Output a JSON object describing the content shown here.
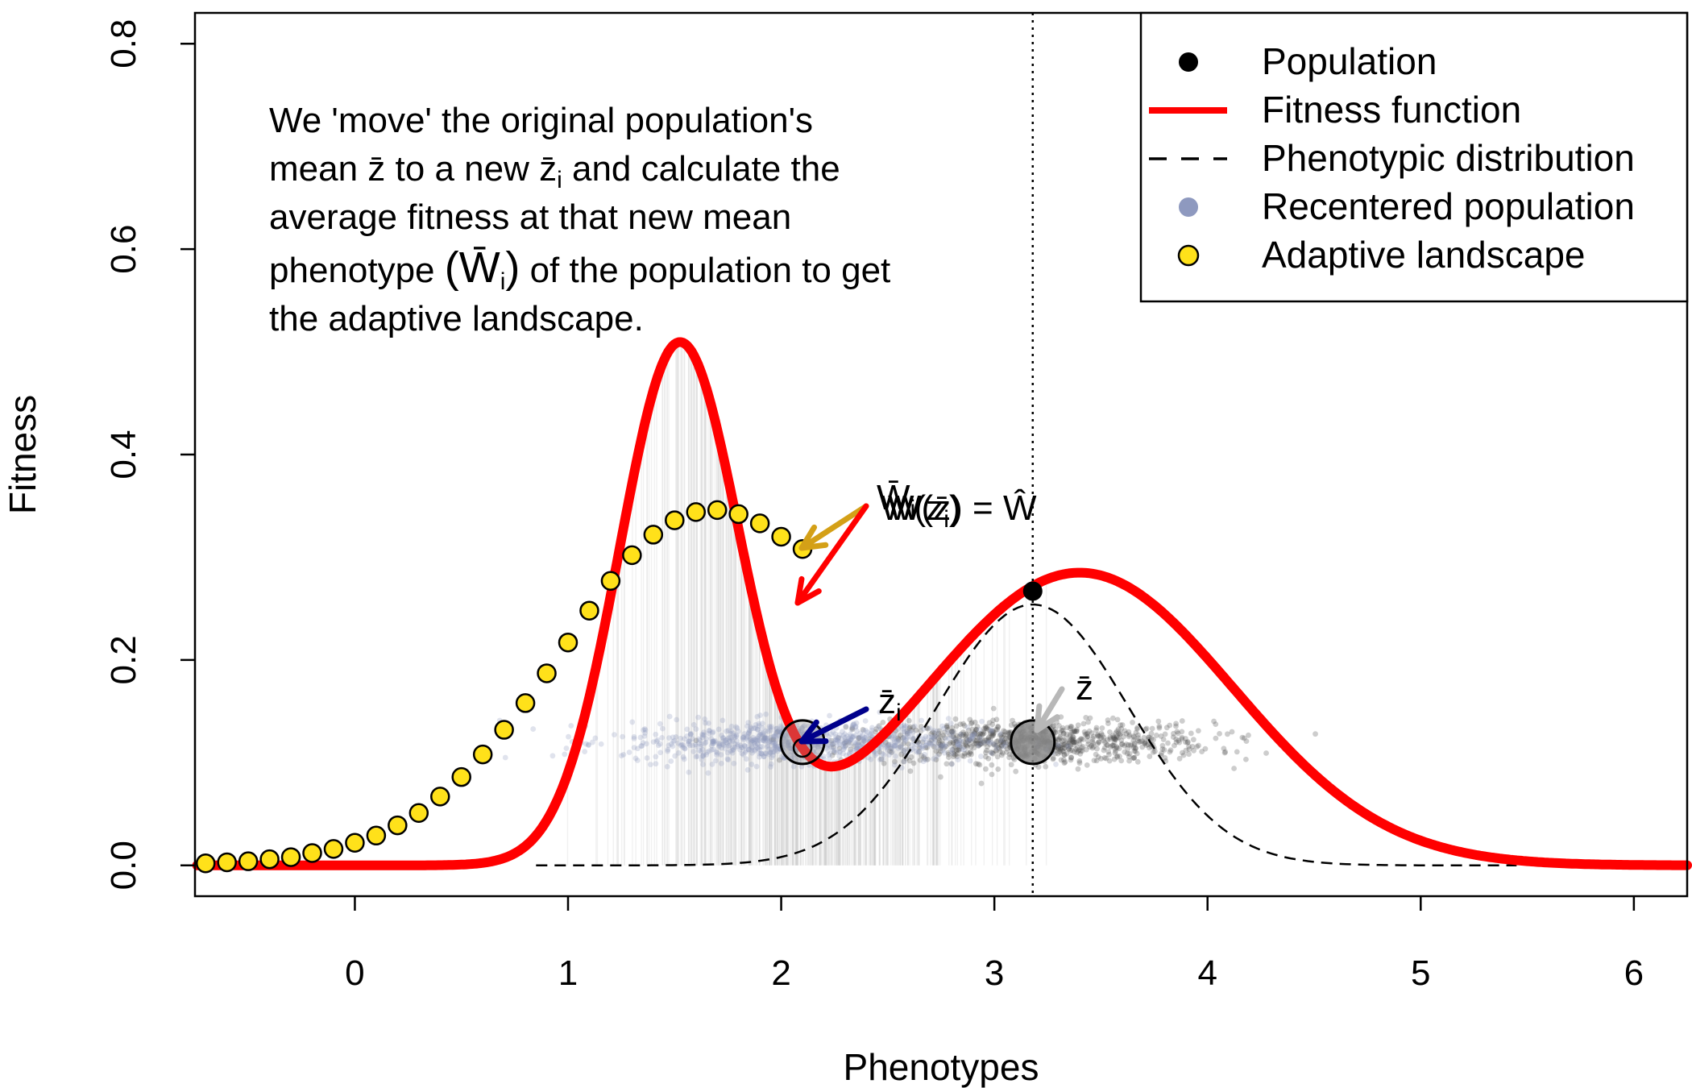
{
  "chart_data": {
    "type": "line",
    "title": "",
    "xlabel": "Phenotypes",
    "ylabel": "Fitness",
    "xlim": [
      -0.75,
      6.25
    ],
    "ylim": [
      -0.03,
      0.83
    ],
    "xticks": [
      0,
      1,
      2,
      3,
      4,
      5,
      6
    ],
    "yticks": [
      0.0,
      0.2,
      0.4,
      0.6,
      0.8
    ],
    "xtick_labels": [
      "0",
      "1",
      "2",
      "3",
      "4",
      "5",
      "6"
    ],
    "ytick_labels": [
      "0.0",
      "0.2",
      "0.4",
      "0.6",
      "0.8"
    ],
    "grid": false,
    "legend_position": "top-right",
    "legend": [
      {
        "label": "Population",
        "symbol": "point",
        "color": "#000000"
      },
      {
        "label": "Fitness function",
        "symbol": "line",
        "color": "#ff0000"
      },
      {
        "label": "Phenotypic distribution",
        "symbol": "dashed",
        "color": "#000000"
      },
      {
        "label": "Recentered population",
        "symbol": "point",
        "color": "#8e99bf"
      },
      {
        "label": "Adaptive landscape",
        "symbol": "circle",
        "color": "#ffe11a"
      }
    ],
    "fitness_function": {
      "components": [
        {
          "mean": 1.52,
          "sd": 0.28,
          "peak": 0.5
        },
        {
          "mean": 3.4,
          "sd": 0.72,
          "peak": 0.285
        }
      ],
      "color": "#ff0000"
    },
    "phenotypic_distribution": {
      "mean": 3.18,
      "sd": 0.45,
      "peak": 0.254,
      "x_range": [
        0.85,
        5.45
      ],
      "color": "#000000"
    },
    "adaptive_landscape": {
      "x": [
        -0.7,
        -0.6,
        -0.5,
        -0.4,
        -0.3,
        -0.2,
        -0.1,
        0.0,
        0.1,
        0.2,
        0.3,
        0.4,
        0.5,
        0.6,
        0.7,
        0.8,
        0.9,
        1.0,
        1.1,
        1.2,
        1.3,
        1.4,
        1.5,
        1.6,
        1.7,
        1.8,
        1.9,
        2.0,
        2.1
      ],
      "y": [
        0.002,
        0.003,
        0.004,
        0.006,
        0.008,
        0.012,
        0.016,
        0.022,
        0.029,
        0.039,
        0.051,
        0.067,
        0.086,
        0.108,
        0.132,
        0.158,
        0.187,
        0.217,
        0.248,
        0.277,
        0.302,
        0.322,
        0.336,
        0.344,
        0.346,
        0.342,
        0.333,
        0.32,
        0.308
      ],
      "color": "#ffe11a"
    },
    "population_point": {
      "x": 3.18,
      "y": 0.267,
      "label": "Population"
    },
    "mean_line_x": 3.18,
    "population_cloud": {
      "center_x": 3.18,
      "sd_x": 0.42,
      "y": 0.12,
      "color": "#4d4d4d"
    },
    "recentered_cloud": {
      "center_x": 2.1,
      "sd_x": 0.42,
      "y": 0.12,
      "color": "#8e99bf"
    },
    "annotations": [
      {
        "id": "zbar",
        "text": "z̄",
        "x": 3.18,
        "y": 0.12
      },
      {
        "id": "zbar_i",
        "text": "z̄ᵢ",
        "x": 2.1,
        "y": 0.12
      },
      {
        "id": "wbar_i",
        "text": "W̄ᵢ",
        "x": 2.1,
        "y": 0.31
      },
      {
        "id": "w_zi",
        "text": "W(z̄ᵢ)",
        "x": 2.1,
        "y": 0.258
      },
      {
        "id": "w_hat",
        "text": "W(z̄) = Ŵ",
        "x": 3.18,
        "y": 0.267
      }
    ]
  },
  "annotation": {
    "line1": "We 'move' the original population's",
    "line2_a": "mean ",
    "line2_zbar": "z̄",
    "line2_b": " to a new ",
    "line2_zbar_i": "z̄",
    "line2_i": "i",
    "line2_c": " and calculate the",
    "line3": "average fitness at that new mean",
    "line4_a": "phenotype ",
    "line4_w": "(W̄",
    "line4_i": "i",
    "line4_close": ")",
    "line4_b": " of the population to get",
    "line5": "the adaptive landscape."
  },
  "labels": {
    "zbar": "z̄",
    "zbar_i": "z̄",
    "sub_i": "i",
    "wbar_i": "W̄",
    "w_zi": "W(z",
    "w_zi_close": ")",
    "w_eq_what": "W(z̄) = Ŵ"
  }
}
